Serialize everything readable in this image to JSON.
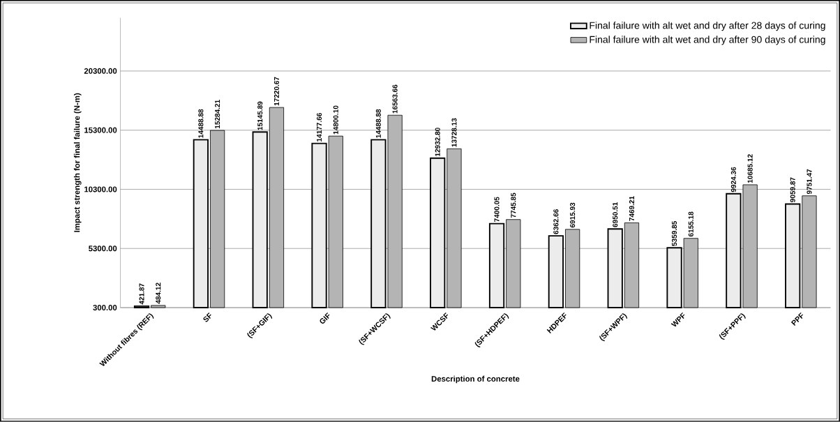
{
  "chart_data": {
    "type": "bar",
    "xlabel": "Description of concrete",
    "ylabel": "Impact strength for final failure (N-m)",
    "categories": [
      "Without fibres (REF)",
      "SF",
      "(SF+GIF)",
      "GIF",
      "(SF+WCSF)",
      "WCSF",
      "(SF+HDPEF)",
      "HDPEF",
      "(SF+WPF)",
      "WPF",
      "(SF+PPF)",
      "PPF"
    ],
    "series": [
      {
        "name": "Final failure with alt wet and dry after 28 days of curing",
        "color": "#ececec",
        "values": [
          421.87,
          14488.88,
          15145.89,
          14177.66,
          14488.88,
          12932.8,
          7400.05,
          6362.66,
          6950.51,
          5359.85,
          9924.36,
          9059.87
        ],
        "value_labels": [
          "421.87",
          "14488.88",
          "15145.89",
          "14177.66",
          "14488.88",
          "12932.80",
          "7400.05",
          "6362.66",
          "6950.51",
          "5359.85",
          "9924.36",
          "9059.87"
        ]
      },
      {
        "name": "Final failure with alt wet and dry after 90 days of curing",
        "color": "#b4b4b4",
        "values": [
          484.12,
          15284.21,
          17220.67,
          14800.1,
          16563.66,
          13728.13,
          7745.85,
          6915.93,
          7469.21,
          6155.18,
          10685.12,
          9751.47
        ],
        "value_labels": [
          "484.12",
          "15284.21",
          "17220.67",
          "14800.10",
          "16563.66",
          "13728.13",
          "7745.85",
          "6915.93",
          "7469.21",
          "6155.18",
          "10685.12",
          "9751.47"
        ]
      }
    ],
    "ylim": [
      300,
      24800
    ],
    "yticks": [
      {
        "value": 300,
        "label": "300.00"
      },
      {
        "value": 5300,
        "label": "5300.00"
      },
      {
        "value": 10300,
        "label": "10300.00"
      },
      {
        "value": 15300,
        "label": "15300.00"
      },
      {
        "value": 20300,
        "label": "20300.00"
      }
    ],
    "grid": "y",
    "legend": "top right"
  }
}
